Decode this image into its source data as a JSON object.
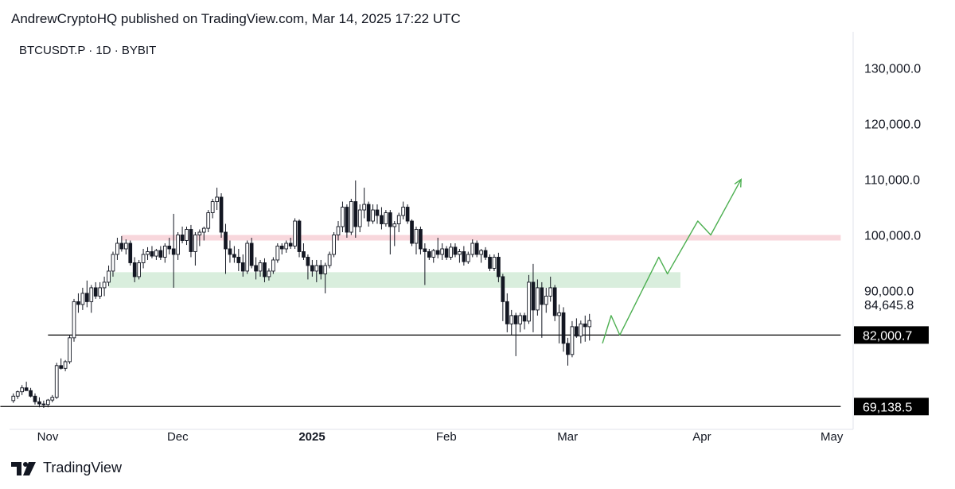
{
  "header": {
    "published": "AndrewCryptoHQ published on TradingView.com, Mar 14, 2025 17:22 UTC"
  },
  "symbol": "BTCUSDT.P · 1D · BYBIT",
  "footer": {
    "brand": "TradingView"
  },
  "colors": {
    "up_body": "#ffffff",
    "down_body": "#131722",
    "wick": "#131722",
    "resistance_zone": "#f8d7dc",
    "support_zone": "#d9eedd",
    "projection": "#4caf50",
    "badge": "#000000"
  },
  "chart_data": {
    "type": "candlestick",
    "title": "",
    "xlabel": "",
    "ylabel": "",
    "ylim": [
      65000,
      135000
    ],
    "y_ticks": [
      "130,000.0",
      "120,000.0",
      "110,000.0",
      "100,000.0",
      "90,000.0"
    ],
    "y_tick_values": [
      130000,
      120000,
      110000,
      100000,
      90000
    ],
    "price_labels": [
      {
        "text": "84,645.8",
        "value": 84645.8,
        "style": "plain"
      },
      {
        "text": "82,000.7",
        "value": 82000.7,
        "style": "badge"
      },
      {
        "text": "69,138.5",
        "value": 69138.5,
        "style": "badge"
      }
    ],
    "x_ticks": [
      {
        "label": "Nov",
        "day": 0,
        "bold": false
      },
      {
        "label": "Dec",
        "day": 30,
        "bold": false
      },
      {
        "label": "2025",
        "day": 61,
        "bold": true
      },
      {
        "label": "Feb",
        "day": 92,
        "bold": false
      },
      {
        "label": "Mar",
        "day": 120,
        "bold": false
      },
      {
        "label": "Apr",
        "day": 151,
        "bold": false
      },
      {
        "label": "May",
        "day": 181,
        "bold": false
      }
    ],
    "x_day_range": [
      -8,
      186
    ],
    "horizontal_lines": [
      {
        "value": 82000.7,
        "from_day": 3,
        "to_day": 186
      },
      {
        "value": 69138.5,
        "from_day": -8,
        "to_day": 186
      }
    ],
    "zones": [
      {
        "name": "resistance",
        "from_value": 99000,
        "to_value": 100000,
        "from_day": 20,
        "to_day": 186
      },
      {
        "name": "support",
        "from_value": 90500,
        "to_value": 93300,
        "from_day": 17,
        "to_day": 149
      }
    ],
    "projection_path": [
      {
        "day": 131,
        "value": 80500
      },
      {
        "day": 133,
        "value": 85500
      },
      {
        "day": 135,
        "value": 82000
      },
      {
        "day": 144,
        "value": 96000
      },
      {
        "day": 146,
        "value": 93000
      },
      {
        "day": 153,
        "value": 102500
      },
      {
        "day": 156,
        "value": 100000
      },
      {
        "day": 163,
        "value": 110000
      }
    ],
    "candles_ohlc": [
      [
        -8,
        69200,
        69800,
        68500,
        69500
      ],
      [
        -7,
        69500,
        70000,
        69000,
        69800
      ],
      [
        -6,
        69800,
        70500,
        69300,
        70200
      ],
      [
        -5,
        70200,
        71500,
        69800,
        71000
      ],
      [
        -4,
        71000,
        72000,
        70500,
        71800
      ],
      [
        -3,
        71800,
        73000,
        71200,
        72500
      ],
      [
        -2,
        72500,
        73600,
        72000,
        72000
      ],
      [
        -1,
        72000,
        72500,
        70800,
        71000
      ],
      [
        0,
        71000,
        71500,
        69500,
        70000
      ],
      [
        1,
        70000,
        70800,
        69000,
        69600
      ],
      [
        2,
        69600,
        70200,
        68900,
        69500
      ],
      [
        3,
        69500,
        70500,
        69000,
        70300
      ],
      [
        4,
        70300,
        71200,
        69900,
        70800
      ],
      [
        5,
        70800,
        77000,
        70500,
        76500
      ],
      [
        6,
        76500,
        77800,
        75800,
        76000
      ],
      [
        7,
        76000,
        77500,
        75500,
        77200
      ],
      [
        8,
        77200,
        82000,
        76800,
        81500
      ],
      [
        9,
        81500,
        88500,
        80800,
        88000
      ],
      [
        10,
        88000,
        89500,
        86000,
        87500
      ],
      [
        11,
        87500,
        90500,
        86500,
        89500
      ],
      [
        12,
        89500,
        91800,
        87000,
        88000
      ],
      [
        13,
        88000,
        91000,
        86000,
        90500
      ],
      [
        14,
        90500,
        91500,
        88500,
        89000
      ],
      [
        15,
        89000,
        91500,
        88500,
        90500
      ],
      [
        16,
        90500,
        92500,
        89000,
        91500
      ],
      [
        17,
        91500,
        94500,
        90800,
        93500
      ],
      [
        18,
        93500,
        97000,
        92500,
        96500
      ],
      [
        19,
        96500,
        99500,
        95500,
        98500
      ],
      [
        20,
        98500,
        99800,
        97000,
        97500
      ],
      [
        21,
        97500,
        99200,
        96500,
        98500
      ],
      [
        22,
        98500,
        99000,
        94500,
        95000
      ],
      [
        23,
        95000,
        96000,
        91500,
        92500
      ],
      [
        24,
        92500,
        95500,
        92000,
        95000
      ],
      [
        25,
        95000,
        97500,
        94000,
        96500
      ],
      [
        26,
        96500,
        97800,
        95500,
        97000
      ],
      [
        27,
        97000,
        98000,
        95800,
        96200
      ],
      [
        28,
        96200,
        97500,
        95500,
        97200
      ],
      [
        29,
        97200,
        98000,
        95500,
        96000
      ],
      [
        30,
        96000,
        98500,
        95000,
        98000
      ],
      [
        31,
        98000,
        99500,
        96500,
        97500
      ],
      [
        32,
        97500,
        103800,
        90500,
        96500
      ],
      [
        33,
        96500,
        100500,
        95500,
        100000
      ],
      [
        34,
        100000,
        101500,
        98500,
        99000
      ],
      [
        35,
        99000,
        101500,
        98200,
        101000
      ],
      [
        36,
        101000,
        101800,
        96000,
        97000
      ],
      [
        37,
        97000,
        100500,
        94500,
        100000
      ],
      [
        38,
        100000,
        101000,
        98000,
        100500
      ],
      [
        39,
        100500,
        101500,
        99000,
        101200
      ],
      [
        40,
        101200,
        104500,
        100500,
        104000
      ],
      [
        41,
        104000,
        106500,
        103000,
        106000
      ],
      [
        42,
        106000,
        108500,
        104500,
        106800
      ],
      [
        43,
        106800,
        107500,
        99500,
        100500
      ],
      [
        44,
        100500,
        102000,
        93000,
        97500
      ],
      [
        45,
        97500,
        99000,
        95000,
        96500
      ],
      [
        46,
        96500,
        98000,
        95000,
        96000
      ],
      [
        47,
        96000,
        97500,
        93500,
        95000
      ],
      [
        48,
        95000,
        96500,
        92500,
        93500
      ],
      [
        49,
        93500,
        99000,
        93000,
        98500
      ],
      [
        50,
        98500,
        99500,
        94000,
        94500
      ],
      [
        51,
        94500,
        96000,
        92000,
        93500
      ],
      [
        52,
        93500,
        95500,
        92500,
        95000
      ],
      [
        53,
        95000,
        95800,
        91500,
        92500
      ],
      [
        54,
        92500,
        94000,
        91800,
        93500
      ],
      [
        55,
        93500,
        96000,
        93000,
        95500
      ],
      [
        56,
        95500,
        98500,
        95000,
        98000
      ],
      [
        57,
        98000,
        98500,
        96500,
        97500
      ],
      [
        58,
        97500,
        99000,
        96800,
        98500
      ],
      [
        59,
        98500,
        99500,
        97500,
        98000
      ],
      [
        60,
        98000,
        103000,
        97500,
        102500
      ],
      [
        61,
        102500,
        102800,
        96000,
        97000
      ],
      [
        62,
        97000,
        98500,
        95500,
        96000
      ],
      [
        63,
        96000,
        96500,
        92000,
        94500
      ],
      [
        64,
        94500,
        95500,
        92500,
        93500
      ],
      [
        65,
        93500,
        95500,
        91500,
        94500
      ],
      [
        66,
        94500,
        95500,
        92000,
        93000
      ],
      [
        67,
        93000,
        95000,
        89500,
        94500
      ],
      [
        68,
        94500,
        97000,
        94000,
        96500
      ],
      [
        69,
        96500,
        100500,
        96000,
        100000
      ],
      [
        70,
        100000,
        102500,
        99000,
        101500
      ],
      [
        71,
        101500,
        106000,
        100500,
        105000
      ],
      [
        72,
        105000,
        105500,
        99500,
        100500
      ],
      [
        73,
        100500,
        106500,
        100000,
        106000
      ],
      [
        74,
        106000,
        109800,
        99500,
        101500
      ],
      [
        75,
        101500,
        105500,
        100500,
        104500
      ],
      [
        76,
        104500,
        108500,
        103000,
        105500
      ],
      [
        77,
        105500,
        106000,
        101500,
        102500
      ],
      [
        78,
        102500,
        105500,
        102000,
        104500
      ],
      [
        79,
        104500,
        105500,
        102000,
        103500
      ],
      [
        80,
        103500,
        105000,
        101000,
        102000
      ],
      [
        81,
        102000,
        104500,
        101500,
        104000
      ],
      [
        82,
        104000,
        104500,
        96500,
        101500
      ],
      [
        83,
        101500,
        102500,
        98000,
        102000
      ],
      [
        84,
        102000,
        104000,
        100500,
        103500
      ],
      [
        85,
        103500,
        106000,
        102800,
        105000
      ],
      [
        86,
        105000,
        105500,
        102000,
        102500
      ],
      [
        87,
        102500,
        102800,
        98000,
        98500
      ],
      [
        88,
        98500,
        101500,
        96500,
        101000
      ],
      [
        89,
        101000,
        101500,
        96500,
        97500
      ],
      [
        90,
        97500,
        98500,
        91000,
        97000
      ],
      [
        91,
        97000,
        97500,
        95500,
        96000
      ],
      [
        92,
        96000,
        97500,
        95000,
        97200
      ],
      [
        93,
        97200,
        99500,
        95800,
        96500
      ],
      [
        94,
        96500,
        98500,
        95500,
        97500
      ],
      [
        95,
        97500,
        98000,
        95500,
        96000
      ],
      [
        96,
        96000,
        98500,
        95500,
        97800
      ],
      [
        97,
        97800,
        98500,
        96000,
        96500
      ],
      [
        98,
        96500,
        97500,
        95000,
        97000
      ],
      [
        99,
        97000,
        98000,
        94500,
        95200
      ],
      [
        100,
        95200,
        97000,
        94800,
        96500
      ],
      [
        101,
        96500,
        99200,
        96000,
        98500
      ],
      [
        102,
        98500,
        99000,
        96000,
        96500
      ],
      [
        103,
        96500,
        97500,
        95000,
        97200
      ],
      [
        104,
        97200,
        97800,
        95500,
        96000
      ],
      [
        105,
        96000,
        96500,
        93500,
        94000
      ],
      [
        106,
        94000,
        96500,
        93500,
        96000
      ],
      [
        107,
        96000,
        96800,
        91500,
        92500
      ],
      [
        108,
        92500,
        93000,
        84500,
        88000
      ],
      [
        109,
        88000,
        89500,
        82500,
        84000
      ],
      [
        110,
        84000,
        86500,
        82000,
        85500
      ],
      [
        111,
        85500,
        86000,
        78200,
        84000
      ],
      [
        112,
        84000,
        86000,
        82500,
        85500
      ],
      [
        113,
        85500,
        86000,
        83000,
        84500
      ],
      [
        114,
        84500,
        92800,
        84000,
        91500
      ],
      [
        115,
        91500,
        94800,
        82500,
        86500
      ],
      [
        116,
        86500,
        92000,
        85500,
        90500
      ],
      [
        117,
        90500,
        91500,
        81500,
        87500
      ],
      [
        118,
        87500,
        90500,
        86000,
        89000
      ],
      [
        119,
        89000,
        92500,
        88000,
        90500
      ],
      [
        120,
        90500,
        91000,
        84500,
        85500
      ],
      [
        121,
        85500,
        87500,
        80500,
        86000
      ],
      [
        122,
        86000,
        87000,
        79000,
        80500
      ],
      [
        123,
        80500,
        81500,
        76500,
        78500
      ],
      [
        124,
        78500,
        84500,
        78000,
        83500
      ],
      [
        125,
        83500,
        85000,
        81500,
        81800
      ],
      [
        126,
        81800,
        84600,
        80500,
        84000
      ],
      [
        127,
        84000,
        85500,
        80800,
        83500
      ],
      [
        128,
        83500,
        85800,
        81000,
        84600
      ]
    ]
  }
}
